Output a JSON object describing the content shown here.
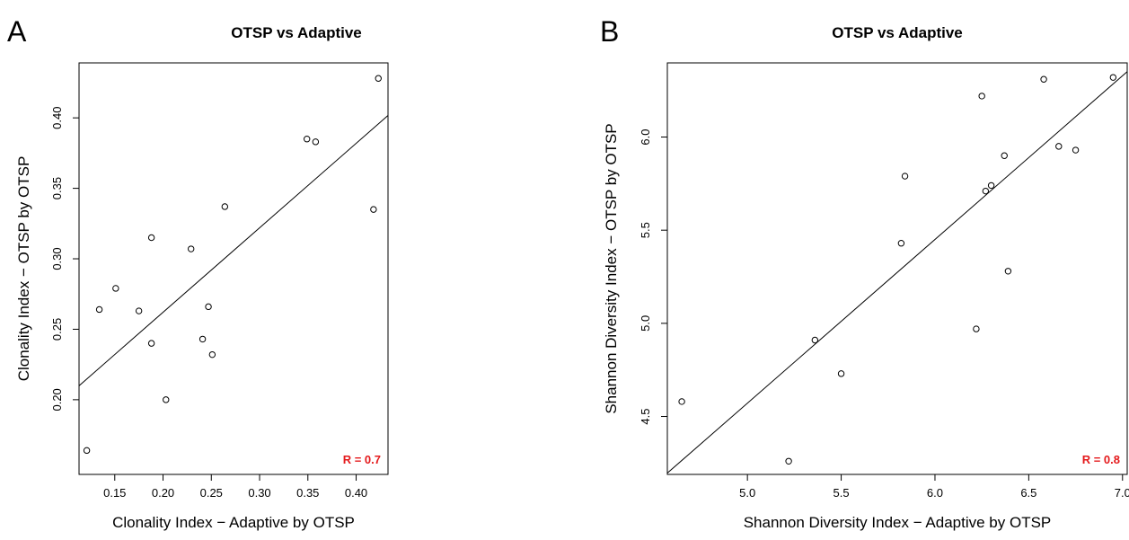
{
  "colors": {
    "annotation": "#e41a1c",
    "ink": "#000000",
    "background": "#ffffff"
  },
  "chart_data": [
    {
      "type": "scatter",
      "panel_label": "A",
      "title": "OTSP vs Adaptive",
      "xlabel": "Clonality Index − Adaptive by OTSP",
      "ylabel": "Clonality Index − OTSP by OTSP",
      "xlim": [
        0.113,
        0.433
      ],
      "ylim": [
        0.147,
        0.439
      ],
      "xticks": [
        "0.15",
        "0.20",
        "0.25",
        "0.30",
        "0.35",
        "0.40"
      ],
      "yticks": [
        "0.20",
        "0.25",
        "0.30",
        "0.35",
        "0.40"
      ],
      "grid": false,
      "annotation": "R = 0.7",
      "annotation_position": "bottom-right",
      "fit_line": {
        "x": [
          0.113,
          0.433
        ],
        "y": [
          0.2099,
          0.4017
        ]
      },
      "points": [
        {
          "x": 0.121,
          "y": 0.164
        },
        {
          "x": 0.134,
          "y": 0.264
        },
        {
          "x": 0.151,
          "y": 0.279
        },
        {
          "x": 0.175,
          "y": 0.263
        },
        {
          "x": 0.188,
          "y": 0.315
        },
        {
          "x": 0.188,
          "y": 0.24
        },
        {
          "x": 0.203,
          "y": 0.2
        },
        {
          "x": 0.229,
          "y": 0.307
        },
        {
          "x": 0.241,
          "y": 0.243
        },
        {
          "x": 0.247,
          "y": 0.266
        },
        {
          "x": 0.251,
          "y": 0.232
        },
        {
          "x": 0.264,
          "y": 0.337
        },
        {
          "x": 0.349,
          "y": 0.385
        },
        {
          "x": 0.358,
          "y": 0.383
        },
        {
          "x": 0.418,
          "y": 0.335
        },
        {
          "x": 0.423,
          "y": 0.428
        }
      ]
    },
    {
      "type": "scatter",
      "panel_label": "B",
      "title": "OTSP vs Adaptive",
      "xlabel": "Shannon Diversity Index − Adaptive by OTSP",
      "ylabel": "Shannon Diversity Index − OTSP by OTSP",
      "xlim": [
        4.573,
        7.025
      ],
      "ylim": [
        4.189,
        6.398
      ],
      "xticks": [
        "5.0",
        "5.5",
        "6.0",
        "6.5",
        "7.0"
      ],
      "yticks": [
        "4.5",
        "5.0",
        "5.5",
        "6.0"
      ],
      "grid": false,
      "annotation": "R = 0.8",
      "annotation_position": "bottom-right",
      "fit_line": {
        "x": [
          4.573,
          7.025
        ],
        "y": [
          4.196,
          6.351
        ]
      },
      "points": [
        {
          "x": 4.65,
          "y": 4.58
        },
        {
          "x": 5.22,
          "y": 4.26
        },
        {
          "x": 5.36,
          "y": 4.91
        },
        {
          "x": 5.5,
          "y": 4.73
        },
        {
          "x": 5.82,
          "y": 5.43
        },
        {
          "x": 5.84,
          "y": 5.79
        },
        {
          "x": 6.22,
          "y": 4.97
        },
        {
          "x": 6.25,
          "y": 6.22
        },
        {
          "x": 6.27,
          "y": 5.71
        },
        {
          "x": 6.3,
          "y": 5.74
        },
        {
          "x": 6.37,
          "y": 5.9
        },
        {
          "x": 6.39,
          "y": 5.28
        },
        {
          "x": 6.58,
          "y": 6.31
        },
        {
          "x": 6.66,
          "y": 5.95
        },
        {
          "x": 6.75,
          "y": 5.93
        },
        {
          "x": 6.95,
          "y": 6.32
        }
      ]
    }
  ]
}
